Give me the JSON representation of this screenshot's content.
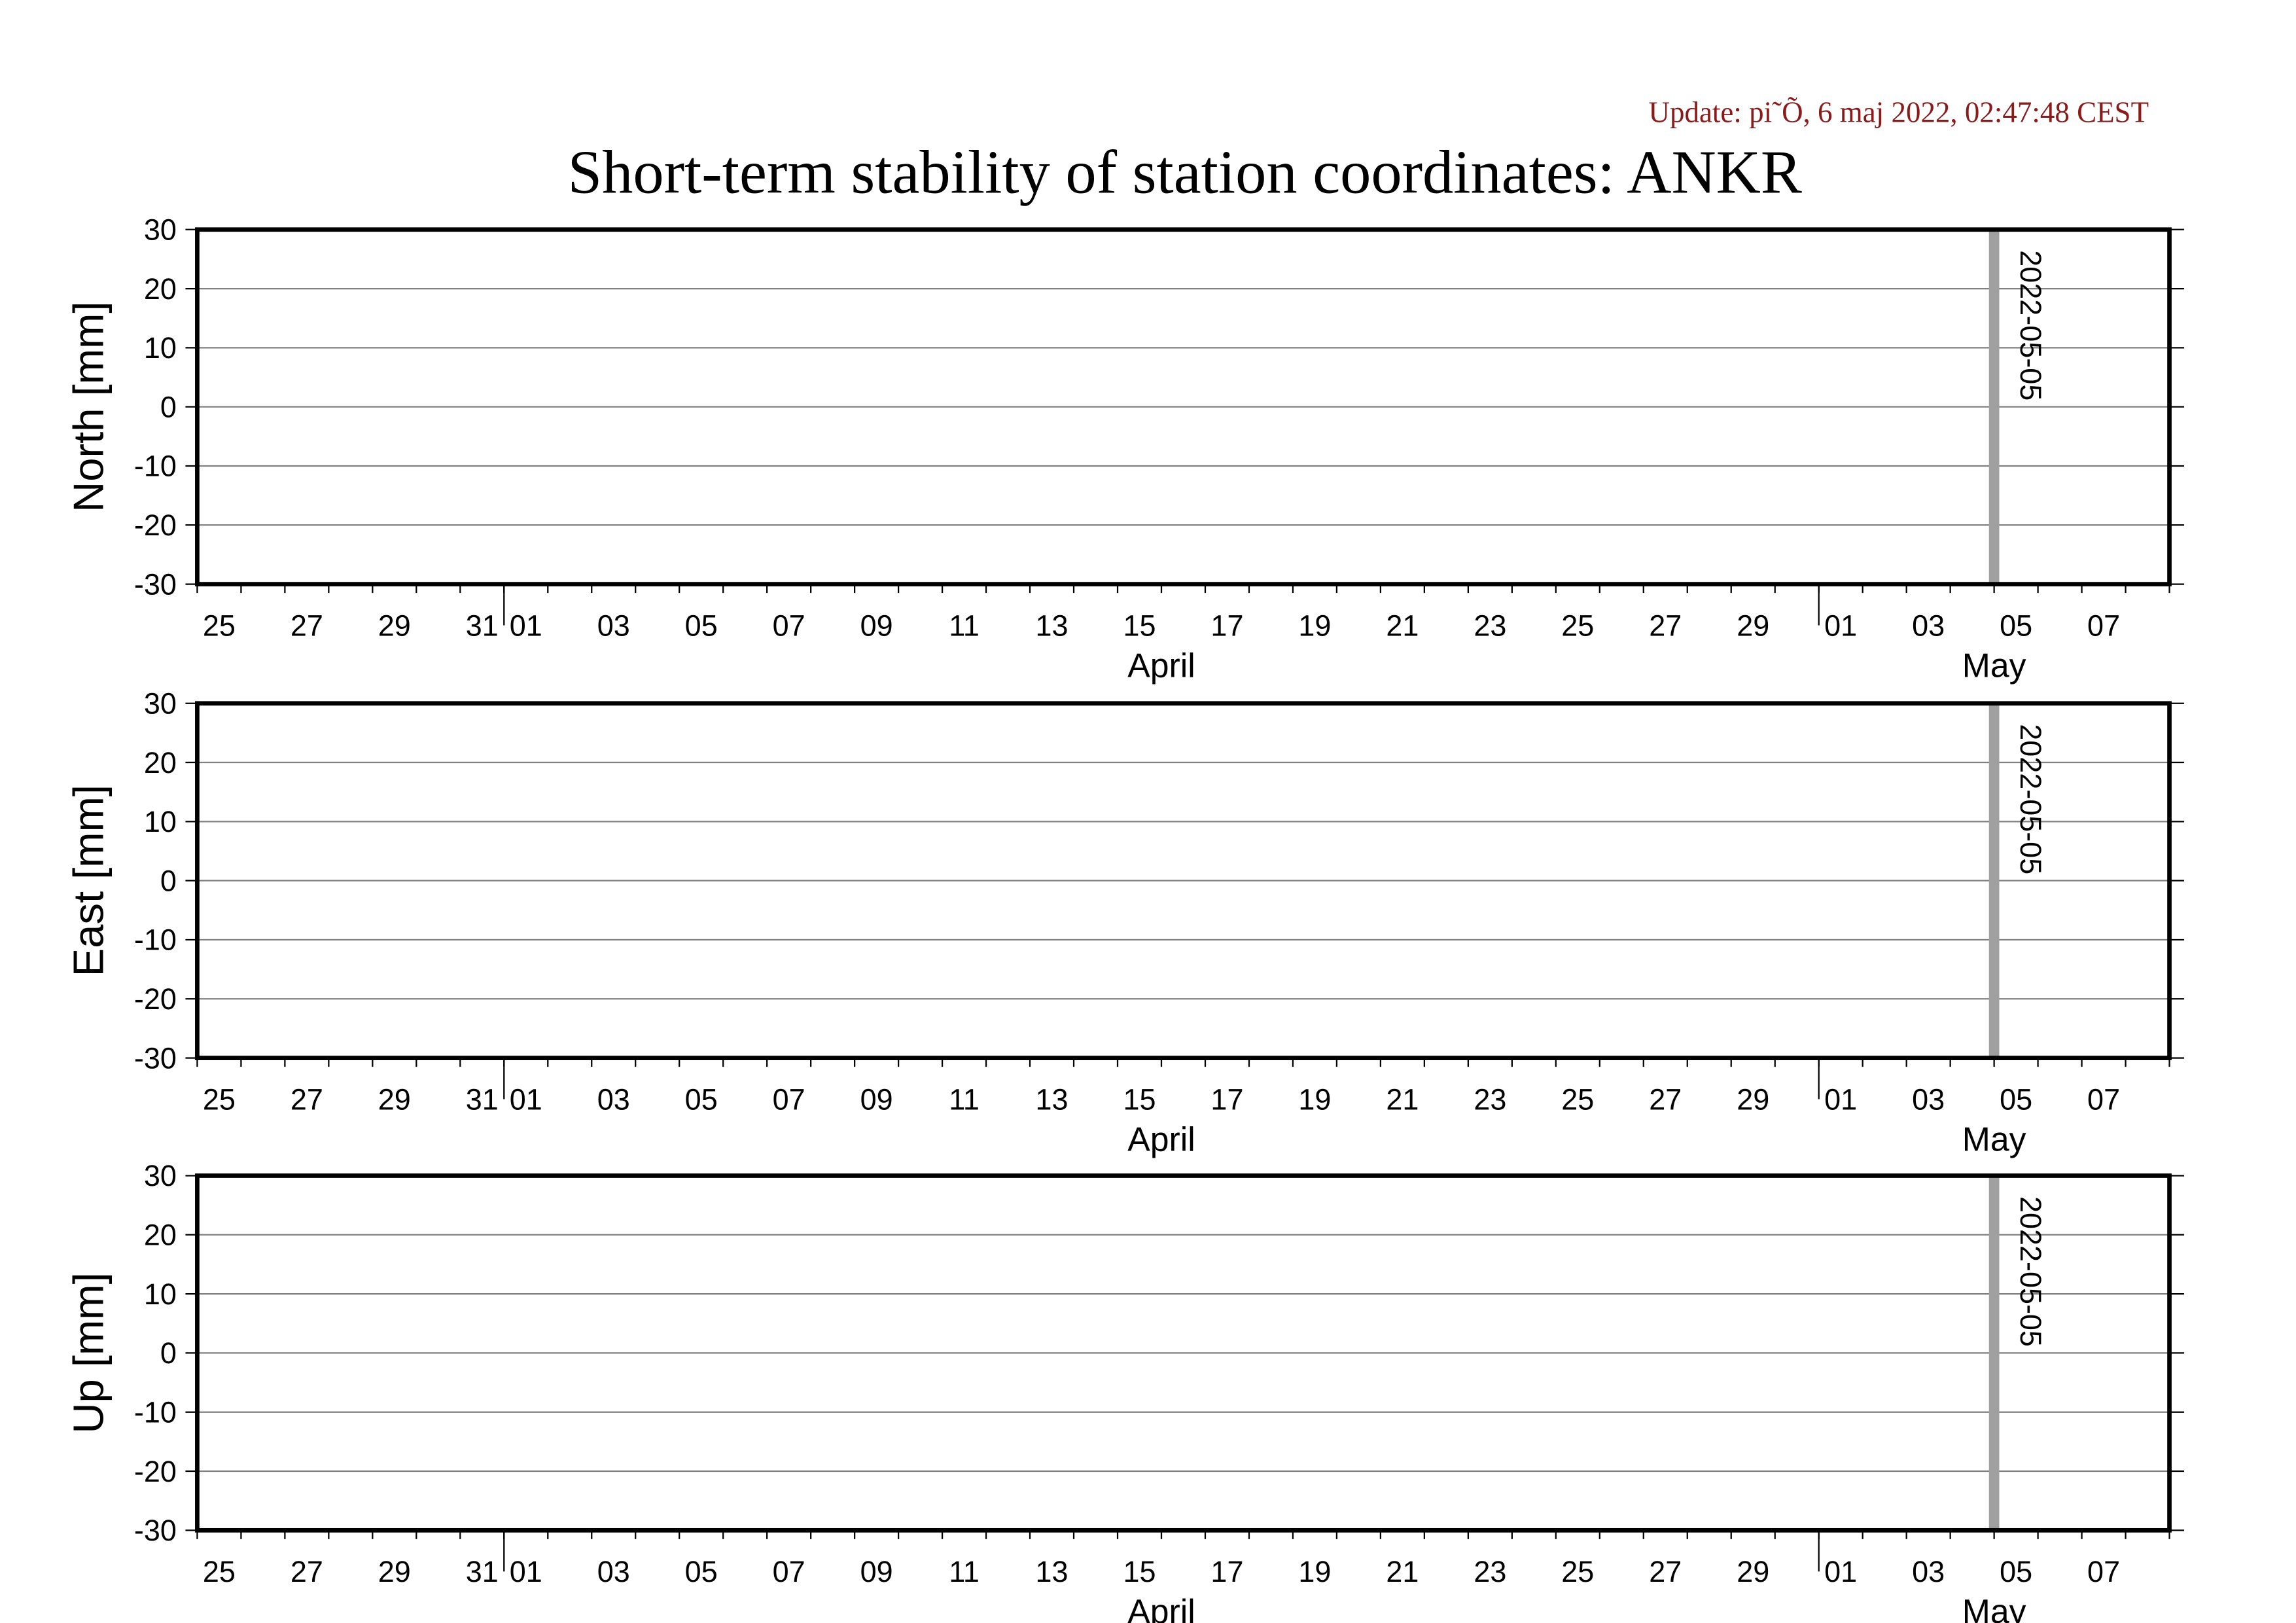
{
  "title": "Short-term stability of station coordinates: ANKR",
  "update": "Update: pi˜Õ, 6 maj 2022, 02:47:48 CEST",
  "chart_data": [
    {
      "type": "line",
      "ylabel": "North [mm]",
      "ylim": [
        -30,
        30
      ],
      "yticks": [
        -30,
        -20,
        -10,
        0,
        10,
        20,
        30
      ],
      "grid": true,
      "xlim": [
        "2022-03-25",
        "2022-05-09"
      ],
      "xticks": [
        {
          "value": "2022-03-25",
          "label": "25"
        },
        {
          "value": "2022-03-27",
          "label": "27"
        },
        {
          "value": "2022-03-29",
          "label": "29"
        },
        {
          "value": "2022-03-31",
          "label": "31"
        },
        {
          "value": "2022-04-01",
          "label": "01"
        },
        {
          "value": "2022-04-03",
          "label": "03"
        },
        {
          "value": "2022-04-05",
          "label": "05"
        },
        {
          "value": "2022-04-07",
          "label": "07"
        },
        {
          "value": "2022-04-09",
          "label": "09"
        },
        {
          "value": "2022-04-11",
          "label": "11"
        },
        {
          "value": "2022-04-13",
          "label": "13"
        },
        {
          "value": "2022-04-15",
          "label": "15"
        },
        {
          "value": "2022-04-17",
          "label": "17"
        },
        {
          "value": "2022-04-19",
          "label": "19"
        },
        {
          "value": "2022-04-21",
          "label": "21"
        },
        {
          "value": "2022-04-23",
          "label": "23"
        },
        {
          "value": "2022-04-25",
          "label": "25"
        },
        {
          "value": "2022-04-27",
          "label": "27"
        },
        {
          "value": "2022-04-29",
          "label": "29"
        },
        {
          "value": "2022-05-01",
          "label": "01"
        },
        {
          "value": "2022-05-03",
          "label": "03"
        },
        {
          "value": "2022-05-05",
          "label": "05"
        },
        {
          "value": "2022-05-07",
          "label": "07"
        }
      ],
      "months": [
        {
          "value": "2022-04",
          "label": "April"
        },
        {
          "value": "2022-05",
          "label": "May"
        }
      ],
      "marker": "2022-05-05",
      "marker_color": "#a0a0a0"
    },
    {
      "type": "line",
      "ylabel": "East [mm]",
      "ylim": [
        -30,
        30
      ],
      "yticks": [
        -30,
        -20,
        -10,
        0,
        10,
        20,
        30
      ],
      "grid": true,
      "xlim": [
        "2022-03-25",
        "2022-05-09"
      ],
      "xticks": [
        {
          "value": "2022-03-25",
          "label": "25"
        },
        {
          "value": "2022-03-27",
          "label": "27"
        },
        {
          "value": "2022-03-29",
          "label": "29"
        },
        {
          "value": "2022-03-31",
          "label": "31"
        },
        {
          "value": "2022-04-01",
          "label": "01"
        },
        {
          "value": "2022-04-03",
          "label": "03"
        },
        {
          "value": "2022-04-05",
          "label": "05"
        },
        {
          "value": "2022-04-07",
          "label": "07"
        },
        {
          "value": "2022-04-09",
          "label": "09"
        },
        {
          "value": "2022-04-11",
          "label": "11"
        },
        {
          "value": "2022-04-13",
          "label": "13"
        },
        {
          "value": "2022-04-15",
          "label": "15"
        },
        {
          "value": "2022-04-17",
          "label": "17"
        },
        {
          "value": "2022-04-19",
          "label": "19"
        },
        {
          "value": "2022-04-21",
          "label": "21"
        },
        {
          "value": "2022-04-23",
          "label": "23"
        },
        {
          "value": "2022-04-25",
          "label": "25"
        },
        {
          "value": "2022-04-27",
          "label": "27"
        },
        {
          "value": "2022-04-29",
          "label": "29"
        },
        {
          "value": "2022-05-01",
          "label": "01"
        },
        {
          "value": "2022-05-03",
          "label": "03"
        },
        {
          "value": "2022-05-05",
          "label": "05"
        },
        {
          "value": "2022-05-07",
          "label": "07"
        }
      ],
      "months": [
        {
          "value": "2022-04",
          "label": "April"
        },
        {
          "value": "2022-05",
          "label": "May"
        }
      ],
      "marker": "2022-05-05",
      "marker_color": "#a0a0a0"
    },
    {
      "type": "line",
      "ylabel": "Up [mm]",
      "ylim": [
        -30,
        30
      ],
      "yticks": [
        -30,
        -20,
        -10,
        0,
        10,
        20,
        30
      ],
      "grid": true,
      "xlim": [
        "2022-03-25",
        "2022-05-09"
      ],
      "xticks": [
        {
          "value": "2022-03-25",
          "label": "25"
        },
        {
          "value": "2022-03-27",
          "label": "27"
        },
        {
          "value": "2022-03-29",
          "label": "29"
        },
        {
          "value": "2022-03-31",
          "label": "31"
        },
        {
          "value": "2022-04-01",
          "label": "01"
        },
        {
          "value": "2022-04-03",
          "label": "03"
        },
        {
          "value": "2022-04-05",
          "label": "05"
        },
        {
          "value": "2022-04-07",
          "label": "07"
        },
        {
          "value": "2022-04-09",
          "label": "09"
        },
        {
          "value": "2022-04-11",
          "label": "11"
        },
        {
          "value": "2022-04-13",
          "label": "13"
        },
        {
          "value": "2022-04-15",
          "label": "15"
        },
        {
          "value": "2022-04-17",
          "label": "17"
        },
        {
          "value": "2022-04-19",
          "label": "19"
        },
        {
          "value": "2022-04-21",
          "label": "21"
        },
        {
          "value": "2022-04-23",
          "label": "23"
        },
        {
          "value": "2022-04-25",
          "label": "25"
        },
        {
          "value": "2022-04-27",
          "label": "27"
        },
        {
          "value": "2022-04-29",
          "label": "29"
        },
        {
          "value": "2022-05-01",
          "label": "01"
        },
        {
          "value": "2022-05-03",
          "label": "03"
        },
        {
          "value": "2022-05-05",
          "label": "05"
        },
        {
          "value": "2022-05-07",
          "label": "07"
        }
      ],
      "months": [
        {
          "value": "2022-04",
          "label": "April"
        },
        {
          "value": "2022-05",
          "label": "May"
        }
      ],
      "marker": "2022-05-05",
      "marker_color": "#a0a0a0"
    }
  ]
}
